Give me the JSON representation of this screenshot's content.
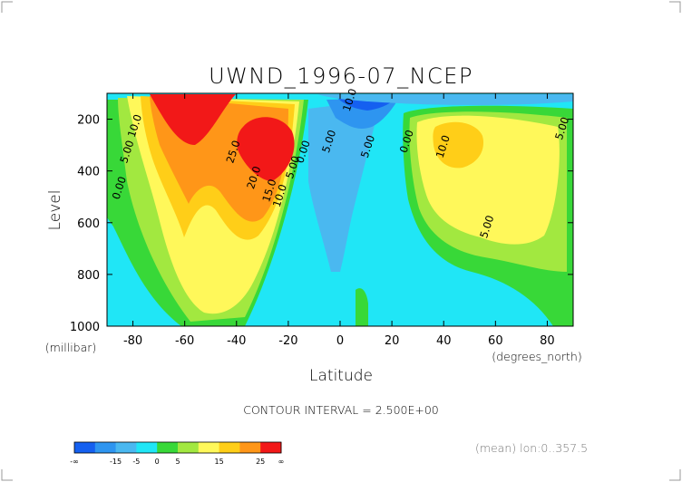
{
  "chart_data": {
    "type": "heatmap",
    "title": "UWND_1996-07_NCEP",
    "xlabel": "Latitude",
    "ylabel": "Level",
    "x_units": "(degrees_north)",
    "y_units": "(millibar)",
    "xlim": [
      -90,
      90
    ],
    "ylim": [
      1000,
      100
    ],
    "x_ticks": [
      -80,
      -60,
      -40,
      -20,
      0,
      20,
      40,
      60,
      80
    ],
    "y_ticks": [
      200,
      400,
      600,
      800,
      1000
    ],
    "contour_interval_text": "CONTOUR INTERVAL = 2.500E+00",
    "footnote": "(mean) lon:0..357.5",
    "contour_labels": [
      {
        "text": "10.0",
        "lat": -78,
        "lev": 230
      },
      {
        "text": "5.00",
        "lat": -81,
        "lev": 330
      },
      {
        "text": "0.00",
        "lat": -84,
        "lev": 470
      },
      {
        "text": "25.0",
        "lat": -40,
        "lev": 330
      },
      {
        "text": "20.0",
        "lat": -32,
        "lev": 430
      },
      {
        "text": "15.0",
        "lat": -26,
        "lev": 480
      },
      {
        "text": "10.0",
        "lat": -22,
        "lev": 500
      },
      {
        "text": "5.00",
        "lat": -17,
        "lev": 390
      },
      {
        "text": "0.00",
        "lat": -13,
        "lev": 330
      },
      {
        "text": "5.00",
        "lat": -3,
        "lev": 290
      },
      {
        "text": "10.0",
        "lat": 5,
        "lev": 130
      },
      {
        "text": "5.00",
        "lat": 12,
        "lev": 310
      },
      {
        "text": "0.00",
        "lat": 27,
        "lev": 290
      },
      {
        "text": "10.0",
        "lat": 41,
        "lev": 310
      },
      {
        "text": "5.00",
        "lat": 58,
        "lev": 620
      },
      {
        "text": "5.00",
        "lat": 87,
        "lev": 240
      }
    ],
    "colorbar": {
      "labels": [
        "-∞",
        "-15",
        "-5",
        "0",
        "5",
        "15",
        "25",
        "∞"
      ],
      "colors": [
        "#1560f0",
        "#2e95f0",
        "#4ab8f0",
        "#20e6f6",
        "#38d838",
        "#a2e840",
        "#fff85a",
        "#ffce18",
        "#ff9618",
        "#f21818"
      ]
    },
    "colors": {
      "deep_blue": "#1560f0",
      "blue": "#2e95f0",
      "light_blue": "#4ab8f0",
      "cyan": "#20e6f6",
      "green": "#38d838",
      "light_green": "#a2e840",
      "yellow": "#fff85a",
      "gold": "#ffce18",
      "orange": "#ff9618",
      "red": "#f21818"
    }
  }
}
